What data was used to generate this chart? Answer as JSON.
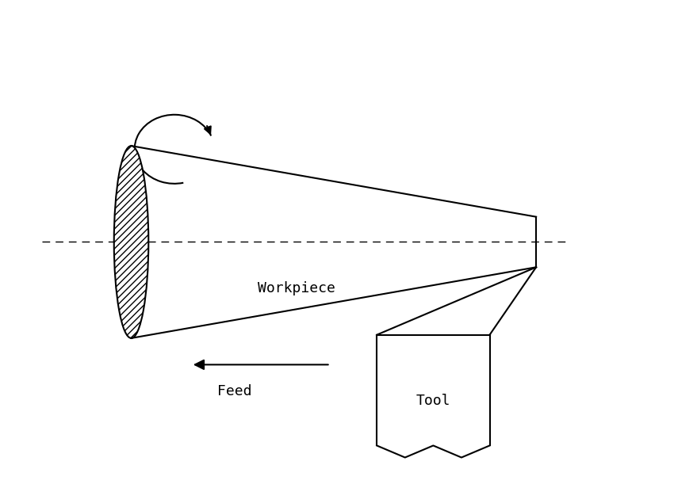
{
  "bg_color": "#ffffff",
  "line_color": "#000000",
  "dashed_color": "#000000",
  "hatch_color": "#000000",
  "text_color": "#000000",
  "workpiece_label": "Workpiece",
  "feed_label": "Feed",
  "tool_label": "Tool",
  "font_size": 13,
  "font_family": "monospace"
}
